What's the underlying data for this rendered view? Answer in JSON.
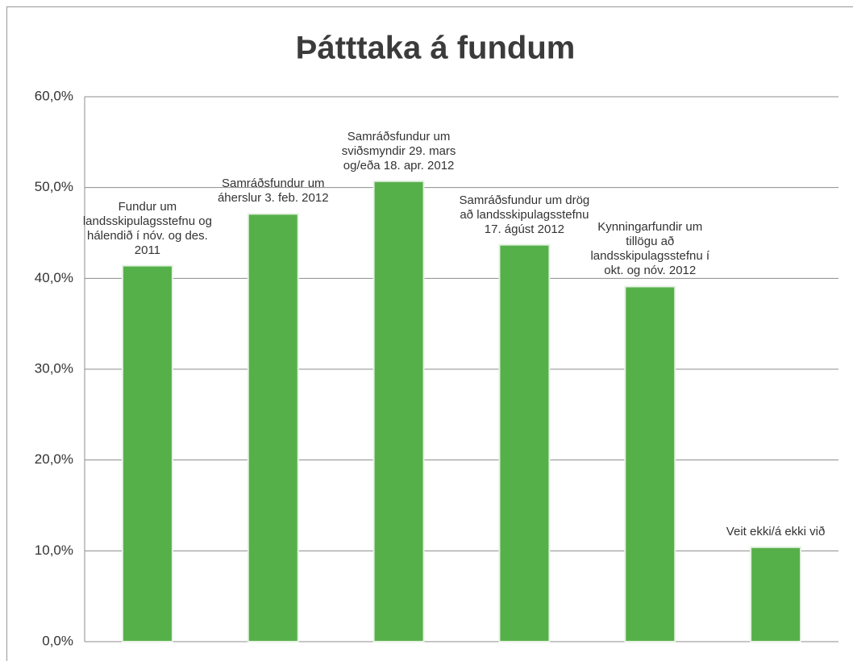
{
  "chart_data": {
    "type": "bar",
    "title": "Þátttaka á fundum",
    "categories": [
      "Fundur um landsskipulagsstefnu og hálendið í nóv. og des. 2011",
      "Samráðsfundur um áherslur 3. feb. 2012",
      "Samráðsfundur um sviðsmyndir 29. mars og/eða 18. apr. 2012",
      "Samráðsfundur um drög að landsskipulagsstefnu 17. ágúst 2012",
      "Kynningarfundir um tillögu að landsskipulagsstefnu í okt. og nóv. 2012",
      "Veit ekki/á ekki við"
    ],
    "values": [
      41.4,
      47.1,
      50.7,
      43.7,
      39.1,
      10.4
    ],
    "color": "#56b04a",
    "ylim": [
      0,
      60
    ],
    "yticks": [
      {
        "value": 0,
        "label": "0,0%"
      },
      {
        "value": 10,
        "label": "10,0%"
      },
      {
        "value": 20,
        "label": "20,0%"
      },
      {
        "value": 30,
        "label": "30,0%"
      },
      {
        "value": 40,
        "label": "40,0%"
      },
      {
        "value": 50,
        "label": "50,0%"
      },
      {
        "value": 60,
        "label": "60,0%"
      }
    ],
    "grid": true
  }
}
